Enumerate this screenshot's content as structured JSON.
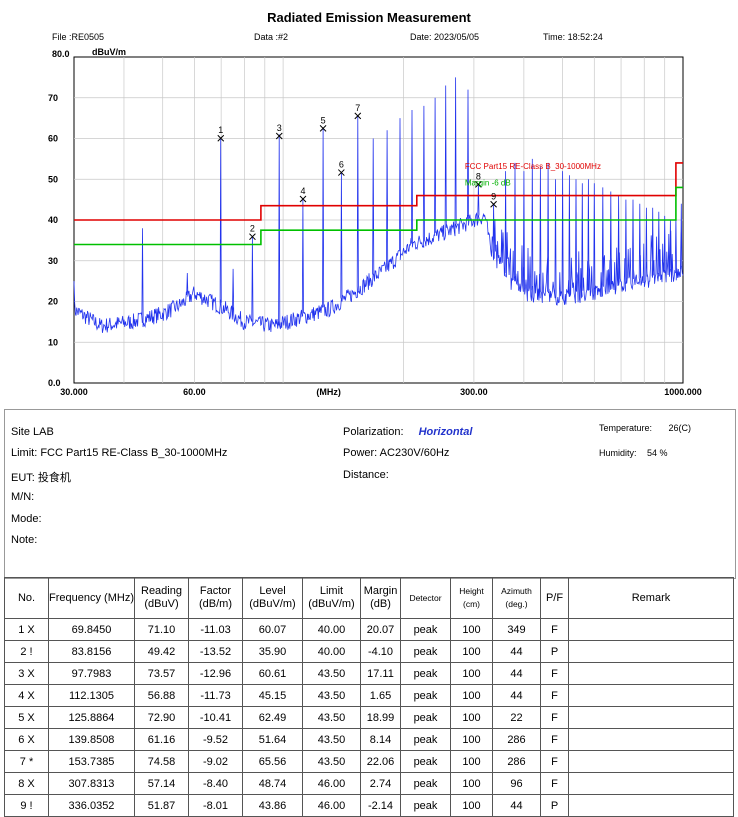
{
  "header": {
    "title": "Radiated Emission Measurement",
    "file": "File :RE0505",
    "data": "Data :#2",
    "date": "Date: 2023/05/05",
    "time": "Time: 18:52:24",
    "yunit": "dBuV/m",
    "ytop": "80.0"
  },
  "chart_data": {
    "type": "line",
    "title": "Radiated Emission Measurement",
    "xlabel": "(MHz)",
    "ylabel": "dBuV/m",
    "xscale": "log",
    "xlim": [
      30,
      1000
    ],
    "ylim": [
      0,
      80
    ],
    "ytick_labels": [
      "0.0",
      "10",
      "20",
      "30",
      "40",
      "50",
      "60",
      "70",
      "80.0"
    ],
    "xtick_labels": [
      {
        "value": 30,
        "label": "30.000"
      },
      {
        "value": 60,
        "label": "60.00"
      },
      {
        "value": 130,
        "label": "(MHz)"
      },
      {
        "value": 300,
        "label": "300.00"
      },
      {
        "value": 1000,
        "label": "1000.000"
      }
    ],
    "series": [
      {
        "name": "FCC Part15 RE-Class B_30-1000MHz",
        "color": "#e00000",
        "points": [
          [
            30,
            40
          ],
          [
            88,
            40
          ],
          [
            88,
            43.5
          ],
          [
            216,
            43.5
          ],
          [
            216,
            46
          ],
          [
            960,
            46
          ],
          [
            960,
            54
          ],
          [
            1000,
            54
          ]
        ]
      },
      {
        "name": "Margin -6 dB",
        "color": "#00c000",
        "points": [
          [
            30,
            34
          ],
          [
            88,
            34
          ],
          [
            88,
            37.5
          ],
          [
            216,
            37.5
          ],
          [
            216,
            40
          ],
          [
            960,
            40
          ],
          [
            960,
            48
          ],
          [
            1000,
            48
          ]
        ]
      }
    ],
    "spectrum_color": "#2233ee",
    "spectrum_floor": [
      [
        30,
        18
      ],
      [
        35,
        14
      ],
      [
        42,
        15
      ],
      [
        50,
        17
      ],
      [
        55,
        19
      ],
      [
        60,
        22
      ],
      [
        66,
        20
      ],
      [
        72,
        18
      ],
      [
        80,
        15
      ],
      [
        95,
        14
      ],
      [
        110,
        16
      ],
      [
        130,
        18
      ],
      [
        150,
        22
      ],
      [
        180,
        28
      ],
      [
        210,
        34
      ],
      [
        240,
        36
      ],
      [
        270,
        38
      ],
      [
        300,
        40
      ],
      [
        320,
        41
      ],
      [
        330,
        33
      ],
      [
        360,
        26
      ],
      [
        400,
        22
      ],
      [
        500,
        21
      ],
      [
        600,
        22
      ],
      [
        700,
        24
      ],
      [
        800,
        25
      ],
      [
        900,
        26
      ],
      [
        1000,
        27
      ]
    ],
    "spectrum_spikes": [
      [
        44.5,
        38
      ],
      [
        57.6,
        27
      ],
      [
        69.8,
        60
      ],
      [
        75,
        28
      ],
      [
        83.8,
        36
      ],
      [
        97.8,
        61
      ],
      [
        112.1,
        45
      ],
      [
        125.9,
        62.5
      ],
      [
        139.9,
        51.6
      ],
      [
        153.7,
        65.5
      ],
      [
        168,
        60
      ],
      [
        182,
        62
      ],
      [
        196,
        65
      ],
      [
        210,
        67
      ],
      [
        225,
        68
      ],
      [
        240,
        70
      ],
      [
        255,
        73
      ],
      [
        270,
        75
      ],
      [
        290,
        72
      ],
      [
        307.8,
        48.7
      ],
      [
        336,
        43.9
      ],
      [
        360,
        52
      ],
      [
        380,
        54
      ],
      [
        400,
        52
      ],
      [
        420,
        55
      ],
      [
        440,
        53
      ],
      [
        460,
        54
      ],
      [
        480,
        50
      ],
      [
        500,
        52
      ],
      [
        520,
        51
      ],
      [
        540,
        50
      ],
      [
        560,
        49
      ],
      [
        580,
        50
      ],
      [
        600,
        49
      ],
      [
        630,
        48
      ],
      [
        660,
        47
      ],
      [
        690,
        46
      ],
      [
        720,
        45
      ],
      [
        750,
        45
      ],
      [
        780,
        44
      ],
      [
        810,
        43
      ],
      [
        840,
        43
      ],
      [
        870,
        42
      ],
      [
        900,
        41
      ],
      [
        930,
        40
      ],
      [
        960,
        41
      ],
      [
        990,
        44
      ]
    ],
    "markers": [
      {
        "label": "1",
        "freq": 69.845,
        "level": 60.07
      },
      {
        "label": "2",
        "freq": 83.8156,
        "level": 35.9
      },
      {
        "label": "3",
        "freq": 97.7983,
        "level": 60.61
      },
      {
        "label": "4",
        "freq": 112.1305,
        "level": 45.15
      },
      {
        "label": "5",
        "freq": 125.8864,
        "level": 62.49
      },
      {
        "label": "6",
        "freq": 139.8508,
        "level": 51.64
      },
      {
        "label": "7",
        "freq": 153.7385,
        "level": 65.56
      },
      {
        "label": "8",
        "freq": 307.8313,
        "level": 48.74
      },
      {
        "label": "9",
        "freq": 336.0352,
        "level": 43.86
      }
    ],
    "annotations": [
      {
        "text": "FCC Part15 RE-Class B_30-1000MHz",
        "color": "#e00000",
        "at": [
          300,
          52.5
        ]
      },
      {
        "text": "Margin -6 dB",
        "color": "#00b000",
        "at": [
          300,
          48.5
        ]
      }
    ]
  },
  "info": {
    "site": "Site  LAB",
    "limit": "Limit: FCC Part15 RE-Class B_30-1000MHz",
    "eut": "EUT:  投食机",
    "mn": "M/N:",
    "mode": "Mode:",
    "note": "Note:",
    "polarization_label": "Polarization:",
    "polarization_value": "Horizontal",
    "power": "Power: AC230V/60Hz",
    "distance": "Distance:",
    "temperature_label": "Temperature:",
    "temperature_value": "26(C)",
    "humidity_label": "Humidity:",
    "humidity_value": "54 %"
  },
  "table": {
    "headers": [
      "No.",
      "Frequency (MHz)",
      "Reading (dBuV)",
      "Factor (dB/m)",
      "Level (dBuV/m)",
      "Limit (dBuV/m)",
      "Margin (dB)",
      "Detector",
      "Height (cm)",
      "Azimuth (deg.)",
      "P/F",
      "Remark"
    ],
    "rows": [
      [
        "1  X",
        "69.8450",
        "71.10",
        "-11.03",
        "60.07",
        "40.00",
        "20.07",
        "peak",
        "100",
        "349",
        "F",
        ""
      ],
      [
        "2  !",
        "83.8156",
        "49.42",
        "-13.52",
        "35.90",
        "40.00",
        "-4.10",
        "peak",
        "100",
        "44",
        "P",
        ""
      ],
      [
        "3  X",
        "97.7983",
        "73.57",
        "-12.96",
        "60.61",
        "43.50",
        "17.11",
        "peak",
        "100",
        "44",
        "F",
        ""
      ],
      [
        "4  X",
        "112.1305",
        "56.88",
        "-11.73",
        "45.15",
        "43.50",
        "1.65",
        "peak",
        "100",
        "44",
        "F",
        ""
      ],
      [
        "5  X",
        "125.8864",
        "72.90",
        "-10.41",
        "62.49",
        "43.50",
        "18.99",
        "peak",
        "100",
        "22",
        "F",
        ""
      ],
      [
        "6  X",
        "139.8508",
        "61.16",
        "-9.52",
        "51.64",
        "43.50",
        "8.14",
        "peak",
        "100",
        "286",
        "F",
        ""
      ],
      [
        "7  *",
        "153.7385",
        "74.58",
        "-9.02",
        "65.56",
        "43.50",
        "22.06",
        "peak",
        "100",
        "286",
        "F",
        ""
      ],
      [
        "8  X",
        "307.8313",
        "57.14",
        "-8.40",
        "48.74",
        "46.00",
        "2.74",
        "peak",
        "100",
        "96",
        "F",
        ""
      ],
      [
        "9  !",
        "336.0352",
        "51.87",
        "-8.01",
        "43.86",
        "46.00",
        "-2.14",
        "peak",
        "100",
        "44",
        "P",
        ""
      ]
    ]
  }
}
